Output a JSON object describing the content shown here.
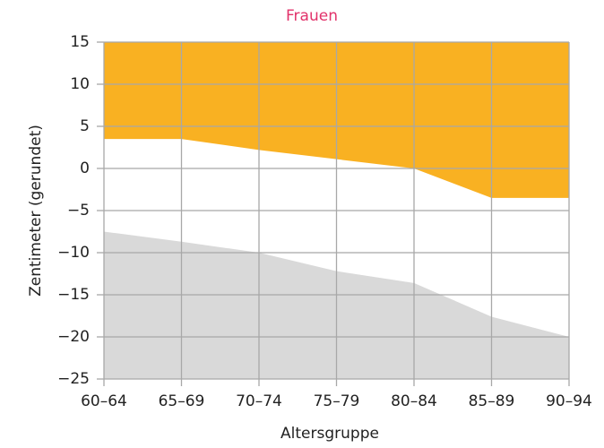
{
  "chart_data": {
    "type": "area",
    "title": "Frauen",
    "title_color": "#e2336b",
    "x_label": "Altersgruppe",
    "y_label": "Zentimeter (gerundet)",
    "categories": [
      "60–64",
      "65–69",
      "70–74",
      "75–79",
      "80–84",
      "85–89",
      "90–94"
    ],
    "series": [
      {
        "color": "#f9b122",
        "fill": "above",
        "values": [
          3.5,
          3.5,
          2.2,
          1.1,
          0,
          -3.5,
          -3.5
        ]
      },
      {
        "color": "#d9d9d9",
        "fill": "below",
        "values": [
          -7.5,
          -8.7,
          -10,
          -12.2,
          -13.6,
          -17.6,
          -20
        ]
      }
    ],
    "ylim": [
      -25,
      15
    ],
    "yticks": [
      {
        "value": -25,
        "label": "−25"
      },
      {
        "value": -20,
        "label": "−20"
      },
      {
        "value": -15,
        "label": "−15"
      },
      {
        "value": -10,
        "label": "−10"
      },
      {
        "value": -5,
        "label": "−5"
      },
      0,
      5,
      10,
      15
    ],
    "grid": true
  }
}
